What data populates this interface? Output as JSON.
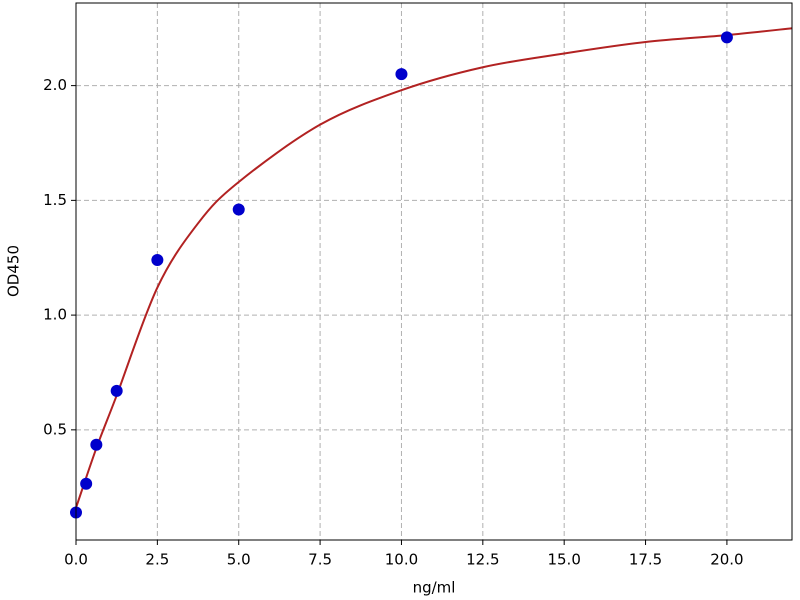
{
  "chart_data": {
    "type": "scatter",
    "x_label": "ng/ml",
    "y_label": "OD450",
    "points": {
      "x": [
        0,
        0.3125,
        0.625,
        1.25,
        2.5,
        5,
        10,
        20
      ],
      "values": [
        0.14,
        0.265,
        0.435,
        0.67,
        1.24,
        1.46,
        2.05,
        2.21
      ],
      "color": "#0000cc"
    },
    "curve": {
      "x": [
        0,
        0.625,
        1.25,
        2.5,
        3.75,
        5,
        7.5,
        10,
        12.5,
        15,
        17.5,
        20,
        22
      ],
      "values": [
        0.16,
        0.42,
        0.65,
        1.12,
        1.4,
        1.58,
        1.83,
        1.98,
        2.08,
        2.14,
        2.19,
        2.22,
        2.25
      ],
      "color": "#b22222"
    },
    "xlim": [
      0,
      22
    ],
    "ylim": [
      0.02,
      2.36
    ],
    "xticks": [
      {
        "value": 0,
        "label": "0.0"
      },
      2.5,
      {
        "value": 5,
        "label": "5.0"
      },
      7.5,
      {
        "value": 10,
        "label": "10.0"
      },
      12.5,
      {
        "value": 15,
        "label": "15.0"
      },
      17.5,
      {
        "value": 20,
        "label": "20.0"
      }
    ],
    "yticks": [
      0.5,
      {
        "value": 1,
        "label": "1.0"
      },
      1.5,
      {
        "value": 2,
        "label": "2.0"
      }
    ],
    "grid": true
  }
}
